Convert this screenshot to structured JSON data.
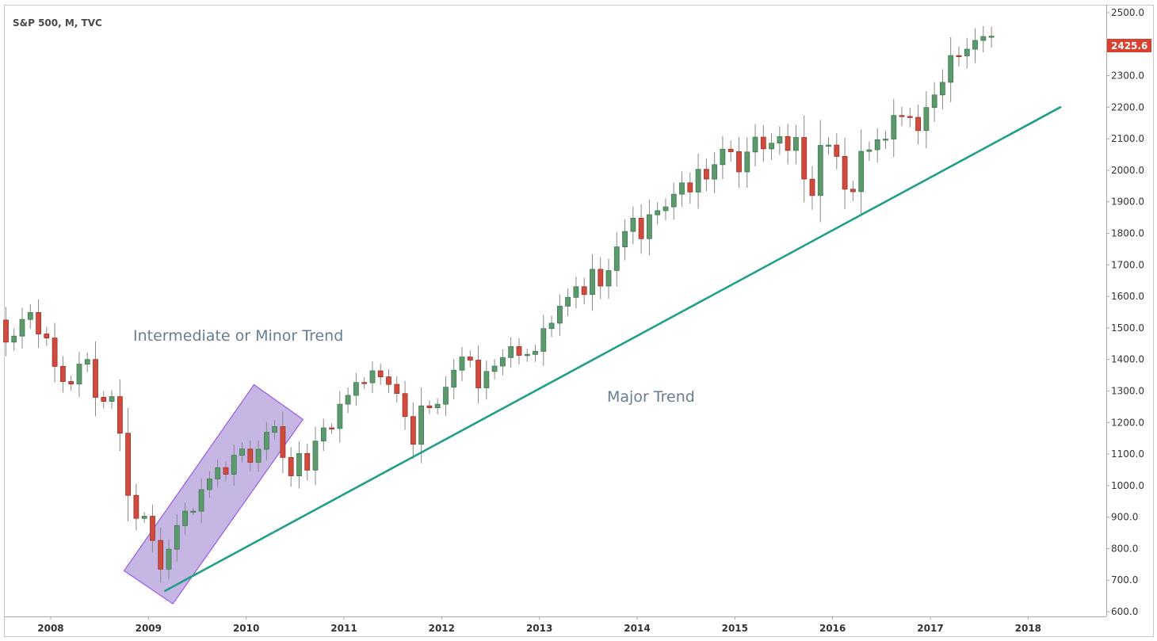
{
  "chart_data": {
    "type": "candlestick",
    "title": "S&P 500, M, TVC",
    "current_price": "2425.6",
    "y_range": [
      585,
      2525
    ],
    "y_ticks": [
      "600.0",
      "700.0",
      "800.0",
      "900.0",
      "1000.0",
      "1100.0",
      "1200.0",
      "1300.0",
      "1400.0",
      "1500.0",
      "1600.0",
      "1700.0",
      "1800.0",
      "1900.0",
      "2000.0",
      "2100.0",
      "2200.0",
      "2300.0",
      "2400.0",
      "2500.0"
    ],
    "x_ticks": [
      {
        "label": "2008",
        "t": 2008.0
      },
      {
        "label": "2009",
        "t": 2009.0
      },
      {
        "label": "2010",
        "t": 2010.0
      },
      {
        "label": "2011",
        "t": 2011.0
      },
      {
        "label": "2012",
        "t": 2012.0
      },
      {
        "label": "2013",
        "t": 2013.0
      },
      {
        "label": "2014",
        "t": 2014.0
      },
      {
        "label": "2015",
        "t": 2015.0
      },
      {
        "label": "2016",
        "t": 2016.0
      },
      {
        "label": "2017",
        "t": 2017.0
      },
      {
        "label": "2018",
        "t": 2018.0
      }
    ],
    "x_range": [
      2007.53,
      2018.8
    ],
    "start": 2007.5,
    "closes": [
      1455,
      1474,
      1527,
      1549,
      1481,
      1468,
      1378,
      1330,
      1322,
      1385,
      1400,
      1280,
      1267,
      1282,
      1166,
      969,
      896,
      903,
      826,
      735,
      798,
      873,
      919,
      919,
      987,
      1021,
      1057,
      1036,
      1096,
      1116,
      1074,
      1115,
      1169,
      1187,
      1089,
      1031,
      1102,
      1049,
      1141,
      1183,
      1181,
      1258,
      1286,
      1327,
      1326,
      1364,
      1345,
      1321,
      1292,
      1219,
      1131,
      1253,
      1247,
      1258,
      1312,
      1366,
      1408,
      1398,
      1310,
      1362,
      1379,
      1406,
      1441,
      1413,
      1416,
      1426,
      1498,
      1515,
      1569,
      1597,
      1631,
      1606,
      1686,
      1633,
      1682,
      1757,
      1806,
      1848,
      1783,
      1859,
      1872,
      1884,
      1924,
      1960,
      1931,
      2003,
      1972,
      2018,
      2067,
      2059,
      1995,
      2058,
      2105,
      2068,
      2086,
      2107,
      2063,
      2104,
      1972,
      1920,
      2079,
      2080,
      2044,
      1940,
      1932,
      2060,
      2065,
      2097,
      2099,
      2174,
      2171,
      2168,
      2126,
      2199,
      2239,
      2279,
      2364,
      2363,
      2384,
      2412,
      2424,
      2425.6
    ],
    "annotations": [
      {
        "text": "Intermediate or Minor Trend"
      },
      {
        "text": "Major Trend"
      }
    ],
    "trend_lines": [
      {
        "name": "major-trend",
        "from": {
          "t": 2009.17,
          "y": 666
        },
        "to": {
          "t": 2018.33,
          "y": 2200
        },
        "color": "#1f9e89"
      },
      {
        "name": "minor-trend-channel",
        "corners": [
          {
            "t": 2008.75,
            "y": 730
          },
          {
            "t": 2009.25,
            "y": 625
          },
          {
            "t": 2010.58,
            "y": 1210
          },
          {
            "t": 2010.08,
            "y": 1320
          }
        ],
        "fill": "#b39ddb",
        "stroke": "#9b59e6"
      }
    ],
    "colors": {
      "up": "#5c9a6e",
      "down": "#d04b3d",
      "wick": "#888888",
      "price_tag": "#d9402f"
    }
  }
}
